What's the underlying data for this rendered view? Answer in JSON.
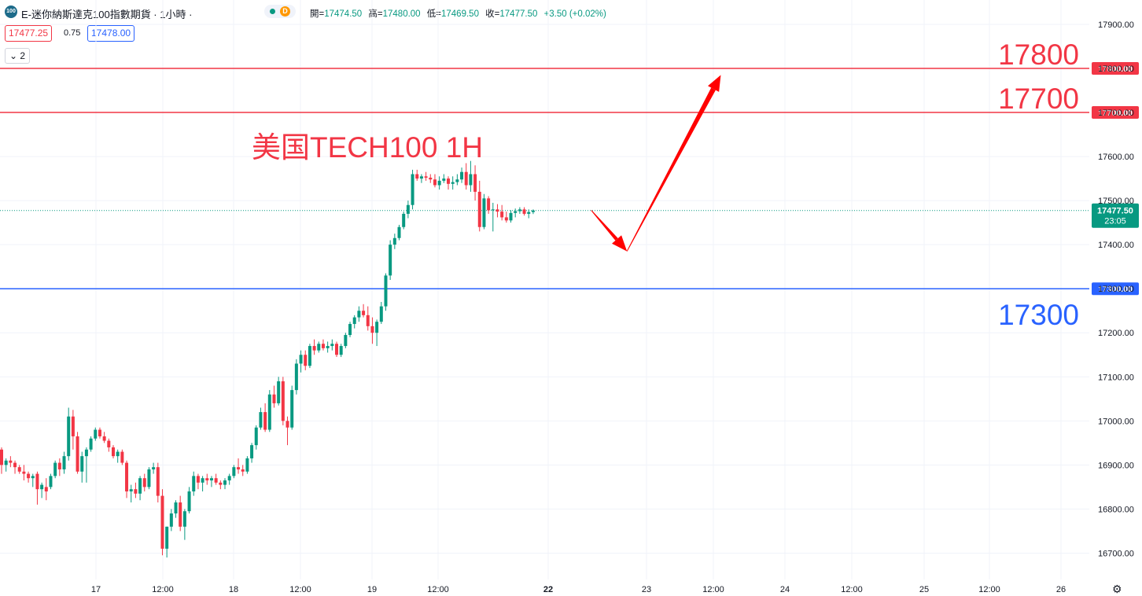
{
  "header": {
    "logo_text": "100",
    "title": "E-迷你納斯達克100指數期貨 · 1小時 ·",
    "status_badge": "D",
    "ohlc": {
      "open_label": "開",
      "open": "17474.50",
      "high_label": "高",
      "high": "17480.00",
      "low_label": "低",
      "low": "17469.50",
      "close_label": "收",
      "close": "17477.50",
      "change": "+3.50 (+0.02%)"
    },
    "sell_price": "17477.25",
    "spread": "0.75",
    "buy_price": "17478.00",
    "collapse_label": "2"
  },
  "colors": {
    "up": "#089981",
    "down": "#f23645",
    "resistance": "#f23645",
    "support": "#2962ff",
    "arrow": "#ff0000"
  },
  "chart_data": {
    "type": "candlestick",
    "title": "美国TECH100 1H",
    "xlabel": "",
    "ylabel": "",
    "y_axis": {
      "min": 16650,
      "max": 17950,
      "ticks": [
        16700,
        16800,
        16900,
        17000,
        17100,
        17200,
        17300,
        17400,
        17500,
        17600,
        17700,
        17800,
        17900
      ],
      "tick_labels": [
        "16700.00",
        "16800.00",
        "16900.00",
        "17000.00",
        "17100.00",
        "17200.00",
        "17300.00",
        "17400.00",
        "17500.00",
        "17600.00",
        "17700.00",
        "17800.00",
        "17900.00"
      ]
    },
    "x_axis": {
      "tick_labels": [
        "17",
        "12:00",
        "18",
        "12:00",
        "19",
        "12:00",
        "22",
        "23",
        "12:00",
        "24",
        "12:00",
        "25",
        "12:00",
        "26"
      ],
      "bold_labels": [
        "22"
      ]
    },
    "grid": true,
    "current_price": {
      "value": 17477.5,
      "label": "17477.50",
      "countdown": "23:05"
    },
    "levels": [
      {
        "value": 17800,
        "label": "17800",
        "axis_label": "17800.00",
        "kind": "resistance"
      },
      {
        "value": 17700,
        "label": "17700",
        "axis_label": "17700.00",
        "kind": "resistance"
      },
      {
        "value": 17300,
        "label": "17300",
        "axis_label": "17300.00",
        "kind": "support"
      }
    ],
    "forecast_path": [
      {
        "bar": 132,
        "price": 17478
      },
      {
        "bar": 140,
        "price": 17385
      },
      {
        "bar": 161,
        "price": 17785
      }
    ],
    "candles": [
      [
        16935,
        16940,
        16880,
        16900
      ],
      [
        16900,
        16915,
        16885,
        16910
      ],
      [
        16910,
        16920,
        16895,
        16905
      ],
      [
        16905,
        16910,
        16880,
        16895
      ],
      [
        16895,
        16900,
        16880,
        16885
      ],
      [
        16885,
        16900,
        16865,
        16880
      ],
      [
        16880,
        16885,
        16860,
        16870
      ],
      [
        16870,
        16880,
        16850,
        16875
      ],
      [
        16880,
        16885,
        16810,
        16845
      ],
      [
        16845,
        16860,
        16825,
        16855
      ],
      [
        16850,
        16870,
        16820,
        16840
      ],
      [
        16850,
        16880,
        16845,
        16875
      ],
      [
        16875,
        16910,
        16870,
        16905
      ],
      [
        16905,
        16915,
        16875,
        16890
      ],
      [
        16890,
        16930,
        16880,
        16920
      ],
      [
        16920,
        17030,
        16910,
        17010
      ],
      [
        17010,
        17025,
        16935,
        16965
      ],
      [
        16965,
        16975,
        16880,
        16885
      ],
      [
        16885,
        16930,
        16860,
        16920
      ],
      [
        16920,
        16940,
        16860,
        16935
      ],
      [
        16935,
        16965,
        16930,
        16960
      ],
      [
        16960,
        16985,
        16955,
        16980
      ],
      [
        16980,
        16985,
        16960,
        16965
      ],
      [
        16965,
        16975,
        16950,
        16955
      ],
      [
        16955,
        16960,
        16930,
        16940
      ],
      [
        16940,
        16945,
        16915,
        16920
      ],
      [
        16920,
        16935,
        16905,
        16930
      ],
      [
        16930,
        16935,
        16900,
        16905
      ],
      [
        16905,
        16910,
        16825,
        16840
      ],
      [
        16840,
        16855,
        16815,
        16845
      ],
      [
        16845,
        16860,
        16825,
        16835
      ],
      [
        16835,
        16875,
        16820,
        16870
      ],
      [
        16870,
        16880,
        16840,
        16850
      ],
      [
        16850,
        16895,
        16845,
        16890
      ],
      [
        16890,
        16905,
        16880,
        16895
      ],
      [
        16895,
        16905,
        16815,
        16830
      ],
      [
        16830,
        16845,
        16695,
        16710
      ],
      [
        16710,
        16760,
        16690,
        16760
      ],
      [
        16760,
        16800,
        16750,
        16790
      ],
      [
        16790,
        16820,
        16780,
        16815
      ],
      [
        16815,
        16830,
        16750,
        16760
      ],
      [
        16760,
        16800,
        16730,
        16795
      ],
      [
        16795,
        16850,
        16790,
        16840
      ],
      [
        16840,
        16885,
        16830,
        16875
      ],
      [
        16875,
        16880,
        16845,
        16860
      ],
      [
        16860,
        16875,
        16840,
        16870
      ],
      [
        16870,
        16880,
        16855,
        16865
      ],
      [
        16865,
        16875,
        16850,
        16870
      ],
      [
        16870,
        16880,
        16855,
        16860
      ],
      [
        16860,
        16865,
        16845,
        16855
      ],
      [
        16855,
        16870,
        16845,
        16865
      ],
      [
        16865,
        16880,
        16855,
        16875
      ],
      [
        16875,
        16900,
        16870,
        16895
      ],
      [
        16895,
        16915,
        16880,
        16890
      ],
      [
        16890,
        16900,
        16875,
        16885
      ],
      [
        16885,
        16920,
        16880,
        16915
      ],
      [
        16915,
        16950,
        16905,
        16945
      ],
      [
        16945,
        16990,
        16935,
        16985
      ],
      [
        16985,
        17030,
        16980,
        17020
      ],
      [
        17020,
        17040,
        16975,
        16980
      ],
      [
        16980,
        17070,
        16975,
        17060
      ],
      [
        17060,
        17080,
        17030,
        17040
      ],
      [
        17040,
        17100,
        17035,
        17090
      ],
      [
        17090,
        17100,
        16990,
        17000
      ],
      [
        17000,
        17010,
        16945,
        16985
      ],
      [
        16985,
        17080,
        16980,
        17070
      ],
      [
        17070,
        17140,
        17060,
        17130
      ],
      [
        17130,
        17160,
        17110,
        17150
      ],
      [
        17150,
        17160,
        17115,
        17125
      ],
      [
        17125,
        17175,
        17120,
        17170
      ],
      [
        17170,
        17185,
        17150,
        17160
      ],
      [
        17160,
        17180,
        17155,
        17175
      ],
      [
        17175,
        17185,
        17160,
        17165
      ],
      [
        17165,
        17180,
        17155,
        17170
      ],
      [
        17170,
        17185,
        17160,
        17175
      ],
      [
        17175,
        17180,
        17145,
        17150
      ],
      [
        17150,
        17175,
        17145,
        17170
      ],
      [
        17170,
        17200,
        17165,
        17195
      ],
      [
        17195,
        17225,
        17190,
        17220
      ],
      [
        17220,
        17240,
        17210,
        17235
      ],
      [
        17235,
        17260,
        17225,
        17250
      ],
      [
        17250,
        17265,
        17235,
        17240
      ],
      [
        17240,
        17260,
        17205,
        17215
      ],
      [
        17215,
        17235,
        17175,
        17200
      ],
      [
        17200,
        17230,
        17170,
        17225
      ],
      [
        17225,
        17270,
        17220,
        17260
      ],
      [
        17260,
        17335,
        17250,
        17330
      ],
      [
        17330,
        17410,
        17320,
        17400
      ],
      [
        17400,
        17425,
        17390,
        17415
      ],
      [
        17415,
        17445,
        17410,
        17440
      ],
      [
        17440,
        17475,
        17435,
        17470
      ],
      [
        17470,
        17500,
        17460,
        17490
      ],
      [
        17490,
        17570,
        17480,
        17560
      ],
      [
        17560,
        17570,
        17545,
        17550
      ],
      [
        17550,
        17560,
        17540,
        17555
      ],
      [
        17555,
        17565,
        17545,
        17552
      ],
      [
        17552,
        17560,
        17540,
        17548
      ],
      [
        17548,
        17560,
        17530,
        17535
      ],
      [
        17535,
        17555,
        17525,
        17545
      ],
      [
        17545,
        17560,
        17540,
        17550
      ],
      [
        17550,
        17555,
        17525,
        17538
      ],
      [
        17538,
        17555,
        17525,
        17542
      ],
      [
        17542,
        17560,
        17535,
        17548
      ],
      [
        17548,
        17575,
        17540,
        17565
      ],
      [
        17565,
        17585,
        17525,
        17535
      ],
      [
        17535,
        17590,
        17520,
        17560
      ],
      [
        17560,
        17580,
        17500,
        17520
      ],
      [
        17520,
        17545,
        17430,
        17440
      ],
      [
        17440,
        17515,
        17435,
        17505
      ],
      [
        17505,
        17510,
        17470,
        17478
      ],
      [
        17478,
        17495,
        17430,
        17480
      ],
      [
        17480,
        17492,
        17462,
        17475
      ],
      [
        17475,
        17490,
        17455,
        17462
      ],
      [
        17462,
        17475,
        17450,
        17455
      ],
      [
        17455,
        17478,
        17450,
        17472
      ],
      [
        17472,
        17482,
        17462,
        17476
      ],
      [
        17476,
        17485,
        17470,
        17480
      ],
      [
        17480,
        17485,
        17466,
        17470
      ],
      [
        17470,
        17480,
        17460,
        17474
      ],
      [
        17474,
        17480,
        17469.5,
        17477.5
      ]
    ]
  }
}
